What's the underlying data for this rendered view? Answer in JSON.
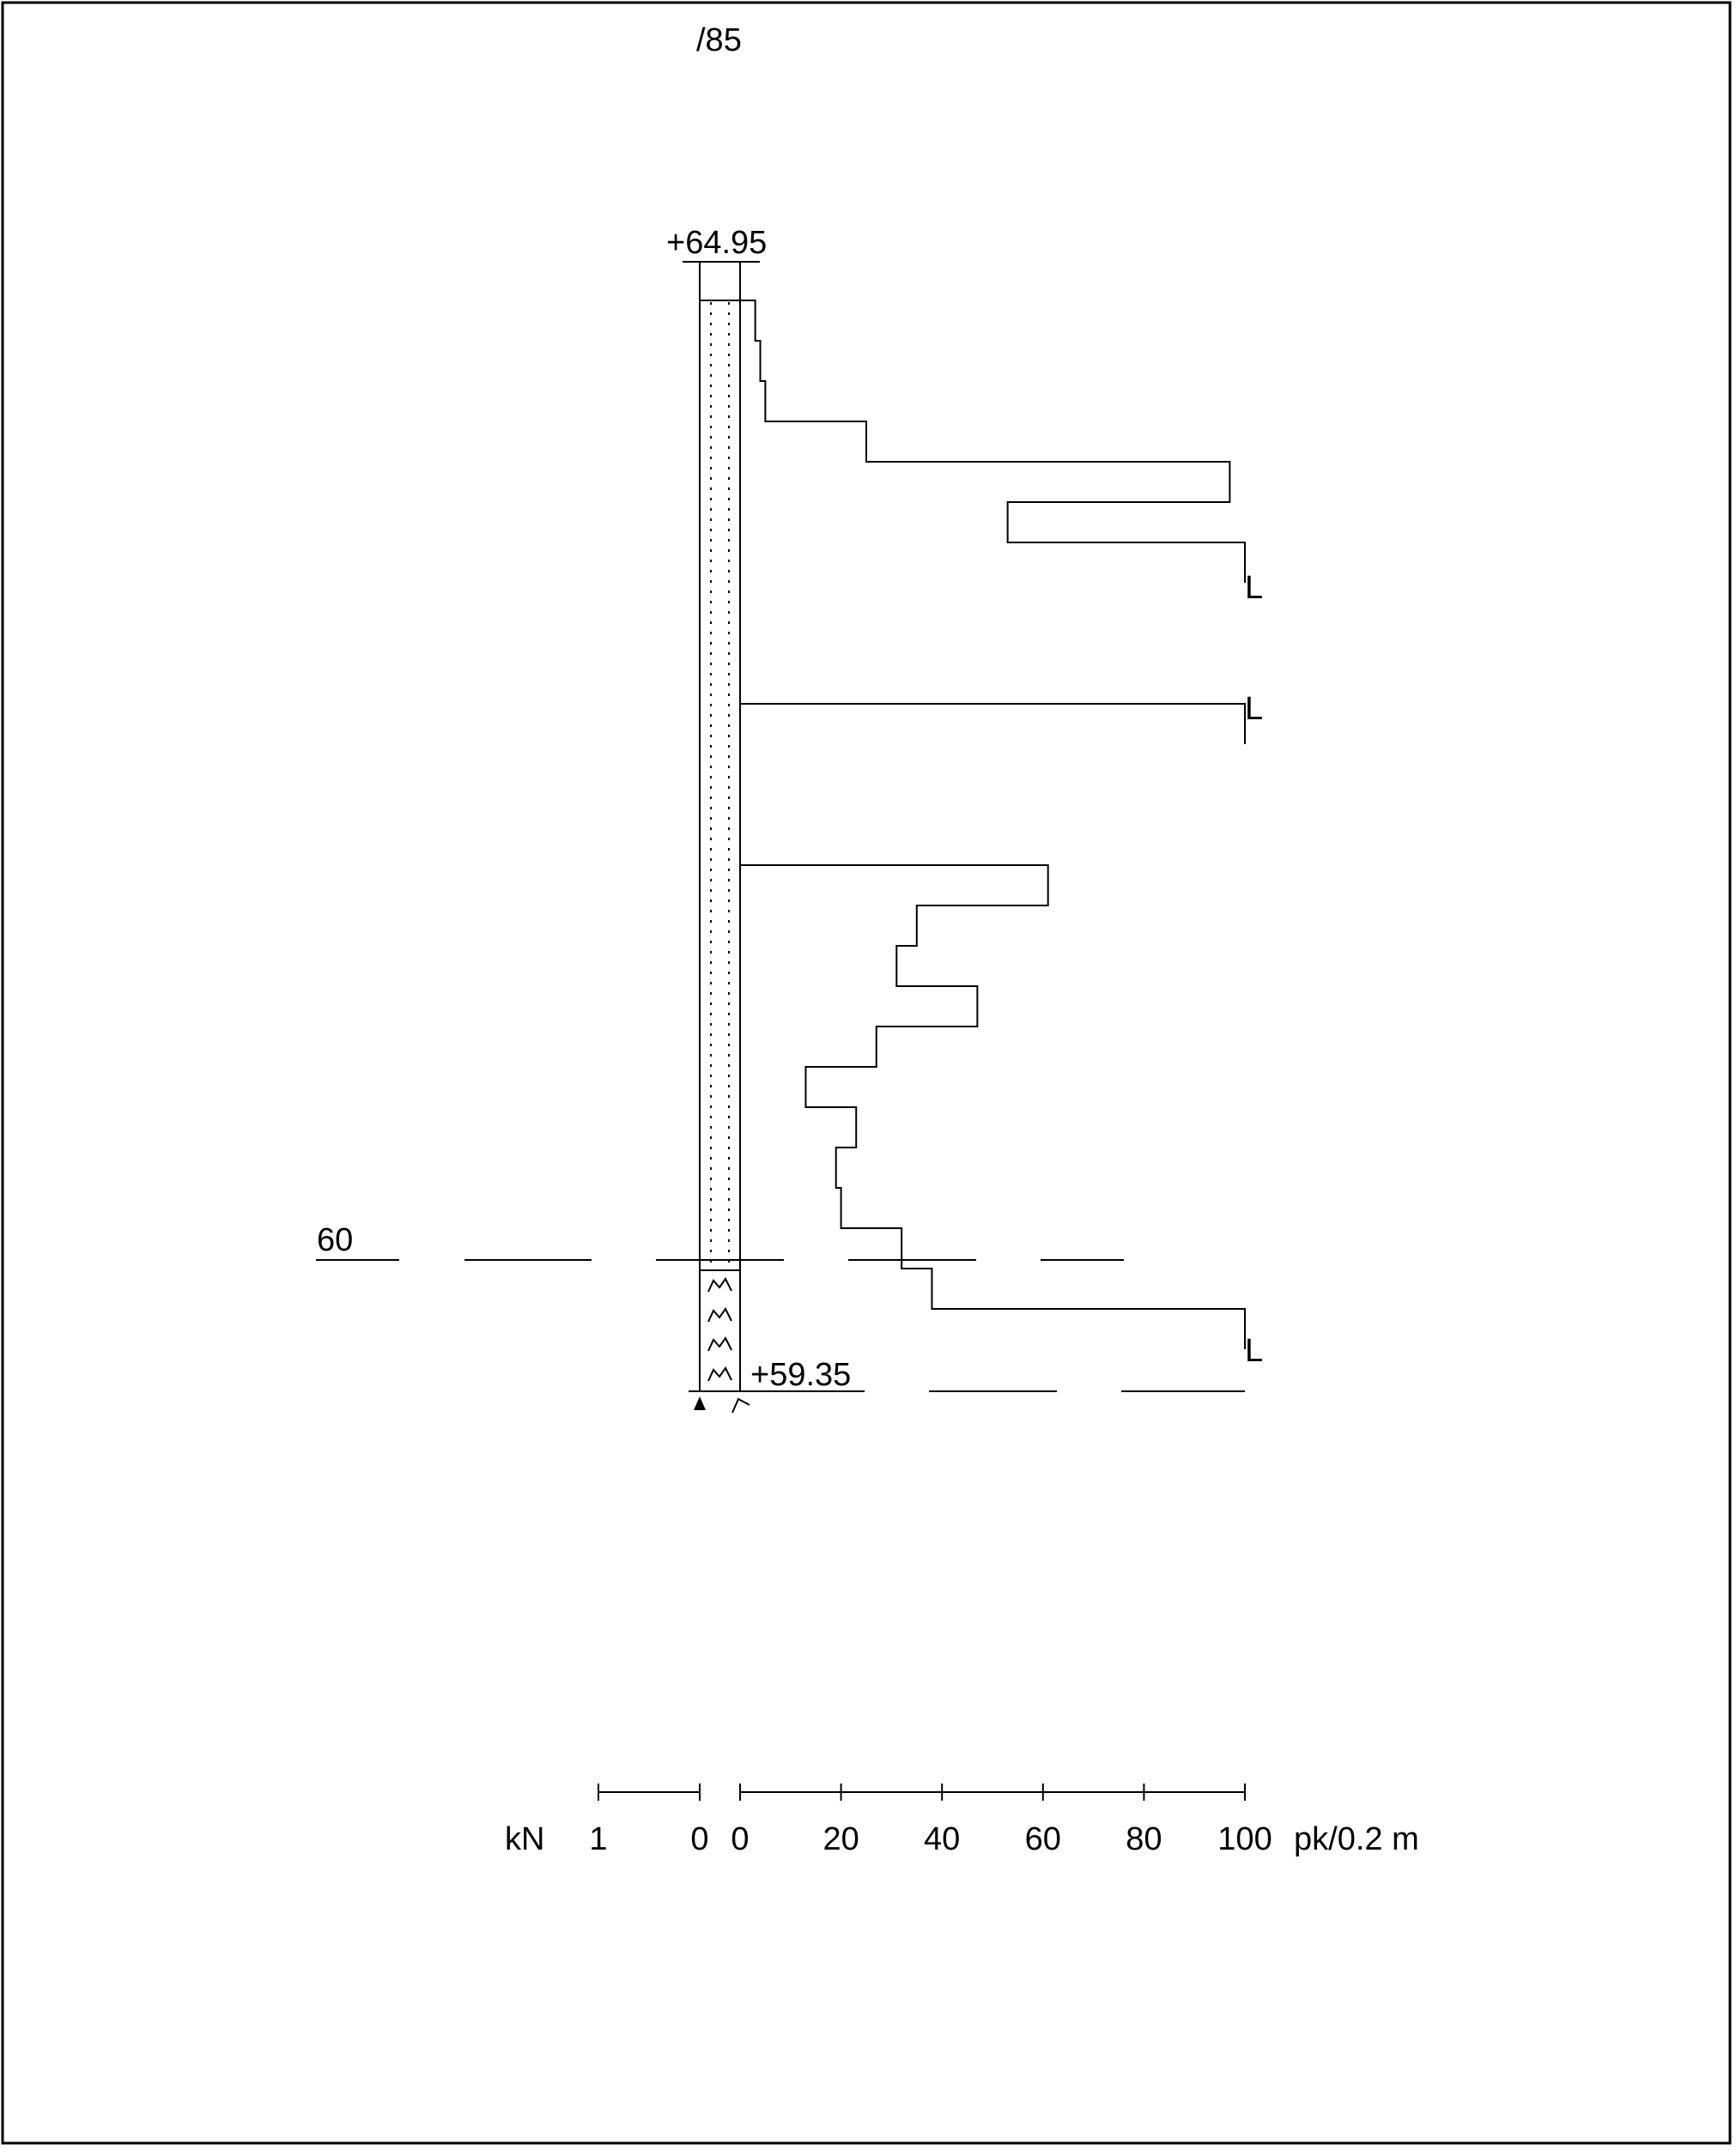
{
  "header": {
    "text": "/85"
  },
  "chart_data": {
    "type": "line",
    "top_level": "+64.95",
    "bottom_level": "+59.35",
    "reference_level_label": "60",
    "end_markers": [
      "L",
      "L",
      "L"
    ],
    "x_axis": {
      "left_unit": "kN",
      "right_unit": "pk/0.2 m",
      "left_ticks": [
        "1",
        "0"
      ],
      "right_ticks": [
        "0",
        "20",
        "40",
        "60",
        "80",
        "100"
      ],
      "xlim": [
        0,
        100
      ]
    },
    "series": [
      {
        "values_top_to_bottom": [
          {
            "depth_from": 0.0,
            "depth_to": 0.2,
            "value": 3
          },
          {
            "depth_from": 0.2,
            "depth_to": 0.4,
            "value": 4
          },
          {
            "depth_from": 0.4,
            "depth_to": 0.6,
            "value": 5
          },
          {
            "depth_from": 0.6,
            "depth_to": 0.8,
            "value": 25
          },
          {
            "depth_from": 0.8,
            "depth_to": 1.0,
            "value": 97
          },
          {
            "depth_from": 1.0,
            "depth_to": 1.2,
            "value": 53
          },
          {
            "depth_from": 1.2,
            "depth_to": 1.4,
            "value": 100
          }
        ]
      },
      {
        "values_top_to_bottom": [
          {
            "depth_from": 2.0,
            "depth_to": 2.2,
            "value": 100
          }
        ]
      },
      {
        "values_top_to_bottom": [
          {
            "depth_from": 2.8,
            "depth_to": 3.0,
            "value": 61
          },
          {
            "depth_from": 3.0,
            "depth_to": 3.2,
            "value": 35
          },
          {
            "depth_from": 3.2,
            "depth_to": 3.4,
            "value": 31
          },
          {
            "depth_from": 3.4,
            "depth_to": 3.6,
            "value": 47
          },
          {
            "depth_from": 3.6,
            "depth_to": 3.8,
            "value": 27
          },
          {
            "depth_from": 3.8,
            "depth_to": 4.0,
            "value": 13
          },
          {
            "depth_from": 4.0,
            "depth_to": 4.2,
            "value": 23
          },
          {
            "depth_from": 4.2,
            "depth_to": 4.4,
            "value": 19
          },
          {
            "depth_from": 4.4,
            "depth_to": 4.6,
            "value": 20
          },
          {
            "depth_from": 4.6,
            "depth_to": 4.8,
            "value": 32
          },
          {
            "depth_from": 4.8,
            "depth_to": 5.0,
            "value": 38
          },
          {
            "depth_from": 5.0,
            "depth_to": 5.2,
            "value": 100
          }
        ]
      }
    ],
    "soil_layers": [
      {
        "type": "silt-sand",
        "from_level": "+64.95",
        "to_level": "60"
      },
      {
        "type": "till",
        "from_level": "60",
        "to_level": "+59.35"
      }
    ]
  }
}
